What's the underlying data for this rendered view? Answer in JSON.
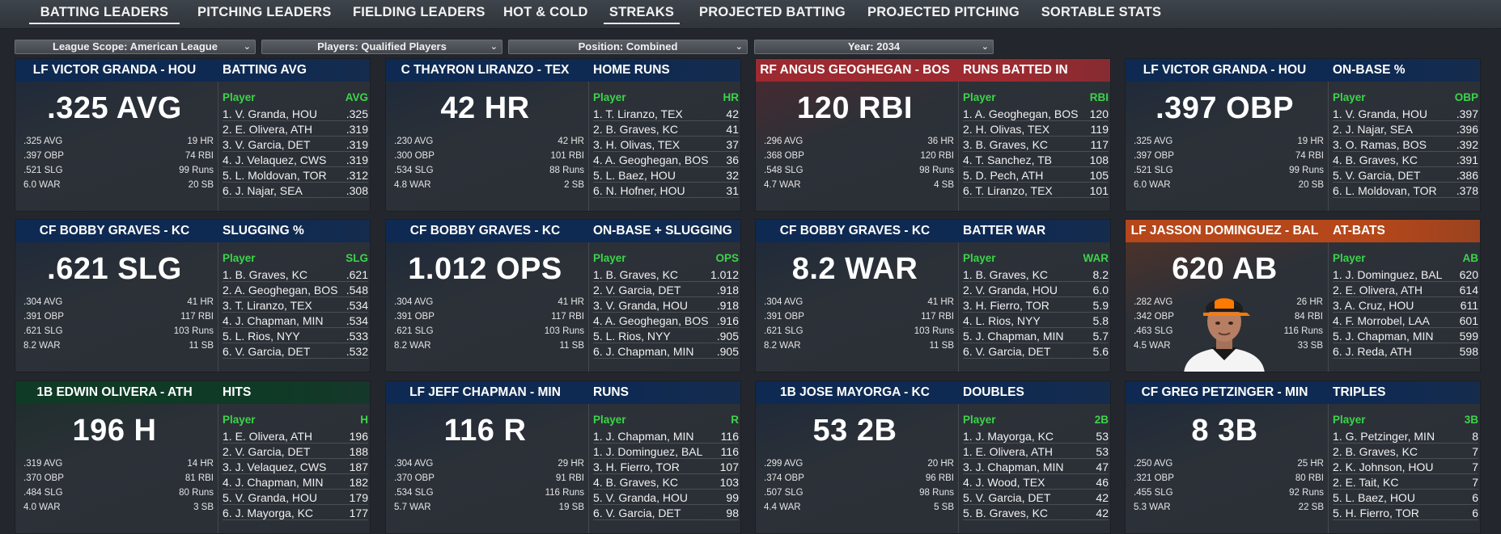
{
  "nav": {
    "tabs": [
      {
        "label": "BATTING LEADERS"
      },
      {
        "label": "PITCHING LEADERS"
      },
      {
        "label": "FIELDING LEADERS"
      },
      {
        "label": "HOT & COLD"
      },
      {
        "label": "STREAKS"
      },
      {
        "label": "PROJECTED BATTING"
      },
      {
        "label": "PROJECTED PITCHING"
      },
      {
        "label": "SORTABLE STATS"
      }
    ]
  },
  "filters": [
    {
      "label": "League Scope: American League"
    },
    {
      "label": "Players: Qualified Players"
    },
    {
      "label": "Position: Combined"
    },
    {
      "label": "Year: 2034"
    }
  ],
  "colors": {
    "navy": "#0f2a52",
    "red": "#9c2a30",
    "orange": "#b5471a",
    "green": "#0f3a26",
    "leader_header": "#3cd44a"
  },
  "cards": [
    {
      "player": "LF VICTOR GRANDA - HOU",
      "title": "BATTING AVG",
      "big": ".325 AVG",
      "theme": "navy",
      "left": [
        ".325 AVG",
        ".397 OBP",
        ".521 SLG",
        "6.0 WAR"
      ],
      "right": [
        "19 HR",
        "74 RBI",
        "99 Runs",
        "20 SB"
      ],
      "col": "Player",
      "stat": "AVG",
      "rows": [
        {
          "n": "1. V. Granda, HOU",
          "v": ".325"
        },
        {
          "n": "2. E. Olivera, ATH",
          "v": ".319"
        },
        {
          "n": "3. V. Garcia, DET",
          "v": ".319"
        },
        {
          "n": "4. J. Velaquez, CWS",
          "v": ".319"
        },
        {
          "n": "5. L. Moldovan, TOR",
          "v": ".312"
        },
        {
          "n": "6. J. Najar, SEA",
          "v": ".308"
        }
      ]
    },
    {
      "player": "C THAYRON LIRANZO - TEX",
      "title": "HOME RUNS",
      "big": "42 HR",
      "theme": "navy",
      "left": [
        ".230 AVG",
        ".300 OBP",
        ".534 SLG",
        "4.8 WAR"
      ],
      "right": [
        "42 HR",
        "101 RBI",
        "88 Runs",
        "2 SB"
      ],
      "col": "Player",
      "stat": "HR",
      "rows": [
        {
          "n": "1. T. Liranzo, TEX",
          "v": "42"
        },
        {
          "n": "2. B. Graves, KC",
          "v": "41"
        },
        {
          "n": "3. H. Olivas, TEX",
          "v": "37"
        },
        {
          "n": "4. A. Geoghegan, BOS",
          "v": "36"
        },
        {
          "n": "5. L. Baez, HOU",
          "v": "32"
        },
        {
          "n": "6. N. Hofner, HOU",
          "v": "31"
        }
      ]
    },
    {
      "player": "RF ANGUS GEOGHEGAN - BOS",
      "title": "RUNS BATTED IN",
      "big": "120 RBI",
      "theme": "red",
      "left": [
        ".296 AVG",
        ".368 OBP",
        ".548 SLG",
        "4.7 WAR"
      ],
      "right": [
        "36 HR",
        "120 RBI",
        "98 Runs",
        "4 SB"
      ],
      "col": "Player",
      "stat": "RBI",
      "rows": [
        {
          "n": "1. A. Geoghegan, BOS",
          "v": "120"
        },
        {
          "n": "2. H. Olivas, TEX",
          "v": "119"
        },
        {
          "n": "3. B. Graves, KC",
          "v": "117"
        },
        {
          "n": "4. T. Sanchez, TB",
          "v": "108"
        },
        {
          "n": "5. D. Pech, ATH",
          "v": "105"
        },
        {
          "n": "6. T. Liranzo, TEX",
          "v": "101"
        }
      ]
    },
    {
      "player": "LF VICTOR GRANDA - HOU",
      "title": "ON-BASE %",
      "big": ".397 OBP",
      "theme": "navy",
      "left": [
        ".325 AVG",
        ".397 OBP",
        ".521 SLG",
        "6.0 WAR"
      ],
      "right": [
        "19 HR",
        "74 RBI",
        "99 Runs",
        "20 SB"
      ],
      "col": "Player",
      "stat": "OBP",
      "rows": [
        {
          "n": "1. V. Granda, HOU",
          "v": ".397"
        },
        {
          "n": "2. J. Najar, SEA",
          "v": ".396"
        },
        {
          "n": "3. O. Ramas, BOS",
          "v": ".392"
        },
        {
          "n": "4. B. Graves, KC",
          "v": ".391"
        },
        {
          "n": "5. V. Garcia, DET",
          "v": ".386"
        },
        {
          "n": "6. L. Moldovan, TOR",
          "v": ".378"
        }
      ]
    },
    {
      "player": "CF BOBBY GRAVES - KC",
      "title": "SLUGGING %",
      "big": ".621 SLG",
      "theme": "navy",
      "left": [
        ".304 AVG",
        ".391 OBP",
        ".621 SLG",
        "8.2 WAR"
      ],
      "right": [
        "41 HR",
        "117 RBI",
        "103 Runs",
        "11 SB"
      ],
      "col": "Player",
      "stat": "SLG",
      "rows": [
        {
          "n": "1. B. Graves, KC",
          "v": ".621"
        },
        {
          "n": "2. A. Geoghegan, BOS",
          "v": ".548"
        },
        {
          "n": "3. T. Liranzo, TEX",
          "v": ".534"
        },
        {
          "n": "4. J. Chapman, MIN",
          "v": ".534"
        },
        {
          "n": "5. L. Rios, NYY",
          "v": ".533"
        },
        {
          "n": "6. V. Garcia, DET",
          "v": ".532"
        }
      ]
    },
    {
      "player": "CF BOBBY GRAVES - KC",
      "title": "ON-BASE + SLUGGING",
      "big": "1.012 OPS",
      "theme": "navy",
      "left": [
        ".304 AVG",
        ".391 OBP",
        ".621 SLG",
        "8.2 WAR"
      ],
      "right": [
        "41 HR",
        "117 RBI",
        "103 Runs",
        "11 SB"
      ],
      "col": "Player",
      "stat": "OPS",
      "rows": [
        {
          "n": "1. B. Graves, KC",
          "v": "1.012"
        },
        {
          "n": "2. V. Garcia, DET",
          "v": ".918"
        },
        {
          "n": "3. V. Granda, HOU",
          "v": ".918"
        },
        {
          "n": "4. A. Geoghegan, BOS",
          "v": ".916"
        },
        {
          "n": "5. L. Rios, NYY",
          "v": ".905"
        },
        {
          "n": "6. J. Chapman, MIN",
          "v": ".905"
        }
      ]
    },
    {
      "player": "CF BOBBY GRAVES - KC",
      "title": "BATTER WAR",
      "big": "8.2 WAR",
      "theme": "navy",
      "left": [
        ".304 AVG",
        ".391 OBP",
        ".621 SLG",
        "8.2 WAR"
      ],
      "right": [
        "41 HR",
        "117 RBI",
        "103 Runs",
        "11 SB"
      ],
      "col": "Player",
      "stat": "WAR",
      "rows": [
        {
          "n": "1. B. Graves, KC",
          "v": "8.2"
        },
        {
          "n": "2. V. Granda, HOU",
          "v": "6.0"
        },
        {
          "n": "3. H. Fierro, TOR",
          "v": "5.9"
        },
        {
          "n": "4. L. Rios, NYY",
          "v": "5.8"
        },
        {
          "n": "5. J. Chapman, MIN",
          "v": "5.7"
        },
        {
          "n": "6. V. Garcia, DET",
          "v": "5.6"
        }
      ]
    },
    {
      "player": "LF JASSON DOMINGUEZ - BAL",
      "title": "AT-BATS",
      "big": "620 AB",
      "theme": "orange",
      "photo": true,
      "left": [
        ".282 AVG",
        ".342 OBP",
        ".463 SLG",
        "4.5 WAR"
      ],
      "right": [
        "26 HR",
        "84 RBI",
        "116 Runs",
        "33 SB"
      ],
      "col": "Player",
      "stat": "AB",
      "rows": [
        {
          "n": "1. J. Dominguez, BAL",
          "v": "620"
        },
        {
          "n": "2. E. Olivera, ATH",
          "v": "614"
        },
        {
          "n": "3. A. Cruz, HOU",
          "v": "611"
        },
        {
          "n": "4. F. Morrobel, LAA",
          "v": "601"
        },
        {
          "n": "5. J. Chapman, MIN",
          "v": "599"
        },
        {
          "n": "6. J. Reda, ATH",
          "v": "598"
        }
      ]
    },
    {
      "player": "1B EDWIN OLIVERA - ATH",
      "title": "HITS",
      "big": "196 H",
      "theme": "green",
      "left": [
        ".319 AVG",
        ".370 OBP",
        ".484 SLG",
        "4.0 WAR"
      ],
      "right": [
        "14 HR",
        "81 RBI",
        "80 Runs",
        "3 SB"
      ],
      "col": "Player",
      "stat": "H",
      "rows": [
        {
          "n": "1. E. Olivera, ATH",
          "v": "196"
        },
        {
          "n": "2. V. Garcia, DET",
          "v": "188"
        },
        {
          "n": "3. J. Velaquez, CWS",
          "v": "187"
        },
        {
          "n": "4. J. Chapman, MIN",
          "v": "182"
        },
        {
          "n": "5. V. Granda, HOU",
          "v": "179"
        },
        {
          "n": "6. J. Mayorga, KC",
          "v": "177"
        }
      ]
    },
    {
      "player": "LF JEFF CHAPMAN - MIN",
      "title": "RUNS",
      "big": "116 R",
      "theme": "navy",
      "left": [
        ".304 AVG",
        ".370 OBP",
        ".534 SLG",
        "5.7 WAR"
      ],
      "right": [
        "29 HR",
        "91 RBI",
        "116 Runs",
        "19 SB"
      ],
      "col": "Player",
      "stat": "R",
      "rows": [
        {
          "n": "1. J. Chapman, MIN",
          "v": "116"
        },
        {
          "n": "1. J. Dominguez, BAL",
          "v": "116"
        },
        {
          "n": "3. H. Fierro, TOR",
          "v": "107"
        },
        {
          "n": "4. B. Graves, KC",
          "v": "103"
        },
        {
          "n": "5. V. Granda, HOU",
          "v": "99"
        },
        {
          "n": "6. V. Garcia, DET",
          "v": "98"
        }
      ]
    },
    {
      "player": "1B JOSE MAYORGA - KC",
      "title": "DOUBLES",
      "big": "53 2B",
      "theme": "navy",
      "left": [
        ".299 AVG",
        ".374 OBP",
        ".507 SLG",
        "4.4 WAR"
      ],
      "right": [
        "20 HR",
        "96 RBI",
        "98 Runs",
        "5 SB"
      ],
      "col": "Player",
      "stat": "2B",
      "rows": [
        {
          "n": "1. J. Mayorga, KC",
          "v": "53"
        },
        {
          "n": "1. E. Olivera, ATH",
          "v": "53"
        },
        {
          "n": "3. J. Chapman, MIN",
          "v": "47"
        },
        {
          "n": "4. J. Wood, TEX",
          "v": "46"
        },
        {
          "n": "5. V. Garcia, DET",
          "v": "42"
        },
        {
          "n": "5. B. Graves, KC",
          "v": "42"
        }
      ]
    },
    {
      "player": "CF GREG PETZINGER - MIN",
      "title": "TRIPLES",
      "big": "8 3B",
      "theme": "navy",
      "left": [
        ".250 AVG",
        ".321 OBP",
        ".455 SLG",
        "5.3 WAR"
      ],
      "right": [
        "25 HR",
        "80 RBI",
        "92 Runs",
        "22 SB"
      ],
      "col": "Player",
      "stat": "3B",
      "rows": [
        {
          "n": "1. G. Petzinger, MIN",
          "v": "8"
        },
        {
          "n": "2. B. Graves, KC",
          "v": "7"
        },
        {
          "n": "2. K. Johnson, HOU",
          "v": "7"
        },
        {
          "n": "2. E. Tait, KC",
          "v": "7"
        },
        {
          "n": "5. L. Baez, HOU",
          "v": "6"
        },
        {
          "n": "5. H. Fierro, TOR",
          "v": "6"
        }
      ]
    }
  ]
}
